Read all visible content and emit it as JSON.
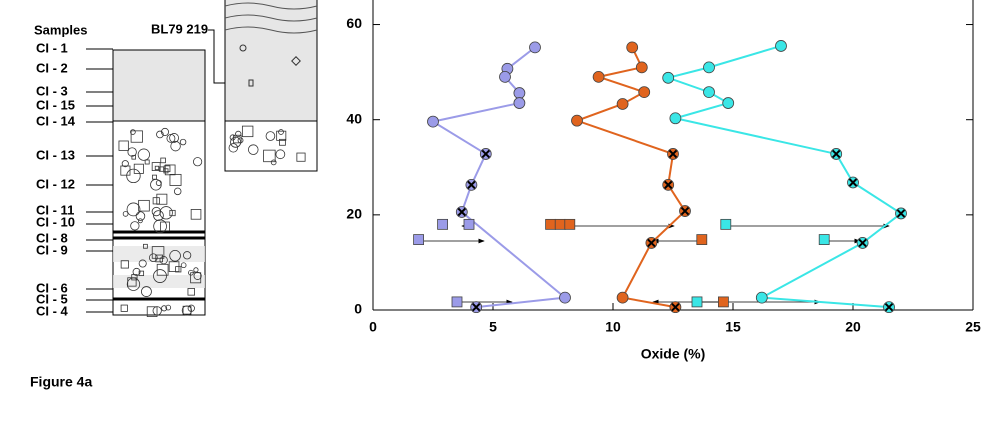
{
  "figure_label": "Figure 4a",
  "column": {
    "header": "Samples",
    "core_label": "BL79 219",
    "samples": [
      "CI - 1",
      "CI - 2",
      "CI - 3",
      "CI - 15",
      "CI - 14",
      "CI - 13",
      "CI - 12",
      "CI - 11",
      "CI - 10",
      "CI - 8",
      "CI - 9",
      "CI - 6",
      "CI - 5",
      "CI - 4"
    ]
  },
  "chart_data": {
    "type": "line",
    "x_label": "Oxide (%)",
    "xlim": [
      0,
      25
    ],
    "xticks": [
      0,
      5,
      10,
      15,
      20,
      25
    ],
    "ylim": [
      0,
      66
    ],
    "yticks": [
      0,
      20,
      40,
      60
    ],
    "series": [
      {
        "color": "#9b9be8",
        "x": [
          6.75,
          5.6,
          5.5,
          6.1,
          6.1,
          2.5,
          4.7,
          4.1,
          3.7,
          8.0,
          4.3
        ],
        "y": [
          55.2,
          50.7,
          49,
          45.6,
          43.5,
          39.6,
          32.8,
          26.3,
          20.6,
          2.6,
          0.6
        ],
        "markers": [
          "circle",
          "circle",
          "circle",
          "circle",
          "circle",
          "circle",
          "cross",
          "cross",
          "cross",
          "circle",
          "cross"
        ]
      },
      {
        "color": "#e0641e",
        "x": [
          10.8,
          11.2,
          9.4,
          11.3,
          10.4,
          8.5,
          12.5,
          12.3,
          13.0,
          11.6,
          10.4,
          12.6
        ],
        "y": [
          55.2,
          51,
          49,
          45.8,
          43.3,
          39.8,
          32.8,
          26.3,
          20.8,
          14.1,
          2.6,
          0.6
        ],
        "markers": [
          "circle",
          "circle",
          "circle",
          "circle",
          "circle",
          "circle",
          "cross",
          "cross",
          "cross",
          "cross",
          "circle",
          "cross"
        ]
      },
      {
        "color": "#3ae6e6",
        "x": [
          17.0,
          14.0,
          12.3,
          14.0,
          14.8,
          12.6,
          19.3,
          20.0,
          22.0,
          20.4,
          16.2,
          21.5
        ],
        "y": [
          55.5,
          51,
          48.8,
          45.8,
          43.5,
          40.3,
          32.8,
          26.8,
          20.3,
          14.1,
          2.6,
          0.6
        ],
        "markers": [
          "circle",
          "circle",
          "circle",
          "circle",
          "circle",
          "circle",
          "cross",
          "cross",
          "cross",
          "cross",
          "circle",
          "cross"
        ]
      }
    ],
    "squares": [
      {
        "color": "#9b9be8",
        "x": [
          2.9,
          4.0,
          1.9,
          3.5
        ],
        "y": [
          18,
          18,
          14.8,
          1.7
        ]
      },
      {
        "color": "#e0641e",
        "x": [
          7.4,
          7.8,
          8.2,
          13.7,
          14.6
        ],
        "y": [
          18,
          18,
          18,
          14.8,
          1.7
        ]
      },
      {
        "color": "#3ae6e6",
        "x": [
          14.7,
          18.8,
          13.5
        ],
        "y": [
          18,
          14.8,
          1.7
        ]
      }
    ]
  }
}
